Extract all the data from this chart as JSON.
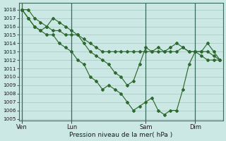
{
  "xlabel": "Pression niveau de la mer( hPa )",
  "ylim": [
    1005,
    1018.5
  ],
  "yticks": [
    1005,
    1006,
    1007,
    1008,
    1009,
    1010,
    1011,
    1012,
    1013,
    1014,
    1015,
    1016,
    1017,
    1018
  ],
  "bg_color": "#cce8e4",
  "grid_color": "#aaccc8",
  "line_color": "#2d6a2d",
  "marker_color": "#2d6a2d",
  "xtick_labels": [
    "Ven",
    "Lun",
    "Sam",
    "Dim"
  ],
  "xtick_positions": [
    0,
    8,
    20,
    28
  ],
  "vline_positions": [
    0,
    8,
    20,
    28
  ],
  "n_points": 33,
  "series": [
    [
      1018,
      1018,
      1017,
      1016.5,
      1016,
      1015.5,
      1015.5,
      1015,
      1015,
      1015,
      1014.5,
      1014,
      1013.5,
      1013,
      1013,
      1013,
      1013,
      1013,
      1013,
      1013,
      1013,
      1013,
      1013,
      1013,
      1013,
      1013,
      1013.5,
      1013,
      1013,
      1013,
      1013,
      1012.5,
      1012
    ],
    [
      1018,
      1017,
      1016,
      1015.5,
      1016,
      1017,
      1016.5,
      1016,
      1015.5,
      1015,
      1014,
      1013,
      1012.5,
      1012,
      1011.5,
      1010.5,
      1010,
      1009,
      1009.5,
      1011.5,
      1013.5,
      1013,
      1013.5,
      1013,
      1013.5,
      1014,
      1013.5,
      1013,
      1013,
      1012.5,
      1012,
      1012,
      1012
    ],
    [
      1018,
      1017,
      1016,
      1015.5,
      1015,
      1015,
      1014,
      1013.5,
      1013,
      1012,
      1011.5,
      1010,
      1009.5,
      1008.5,
      1009,
      1008.5,
      1008,
      1007,
      1006,
      1006.5,
      1007,
      1007.5,
      1006,
      1005.5,
      1006,
      1006,
      1008.5,
      1011.5,
      1013,
      1013,
      1014,
      1013,
      1012
    ]
  ]
}
